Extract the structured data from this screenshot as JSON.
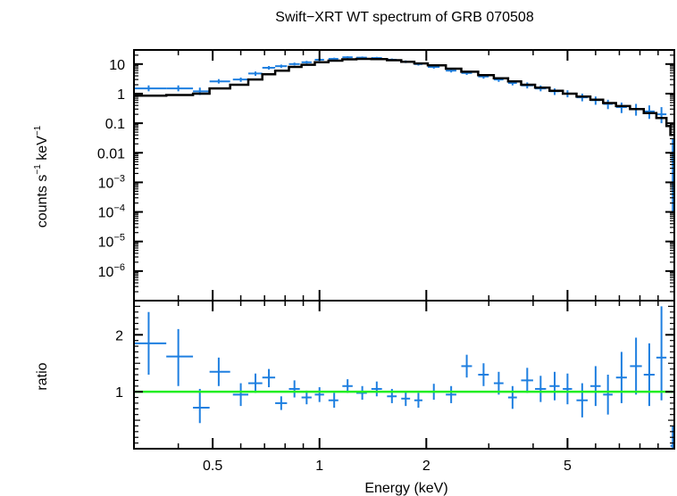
{
  "chart_data": {
    "type": "scatter",
    "title": "Swift−XRT WT spectrum of GRB 070508",
    "xlabel": "Energy (keV)",
    "x_scale": "log",
    "xlim": [
      0.3,
      10
    ],
    "x_ticks": [
      {
        "value": 0.5,
        "label": "0.5"
      },
      {
        "value": 1,
        "label": "1"
      },
      {
        "value": 2,
        "label": "2"
      },
      {
        "value": 5,
        "label": "5"
      }
    ],
    "colors": {
      "data": "#1e7fe0",
      "model": "#000000",
      "unity": "#22ee22",
      "frame": "#000000"
    },
    "panels": [
      {
        "id": "spectrum",
        "ylabel_main": "counts s",
        "ylabel_exp1": "−1",
        "ylabel_mid": " keV",
        "ylabel_exp2": "−1",
        "y_scale": "log",
        "ylim": [
          1e-07,
          30
        ],
        "y_ticks": [
          {
            "value": 10,
            "label": "10"
          },
          {
            "value": 1,
            "label": "1"
          },
          {
            "value": 0.1,
            "label": "0.1"
          },
          {
            "value": 0.01,
            "label": "0.01"
          },
          {
            "value": 0.001,
            "base": "10",
            "exp": "−3"
          },
          {
            "value": 0.0001,
            "base": "10",
            "exp": "−4"
          },
          {
            "value": 1e-05,
            "base": "10",
            "exp": "−5"
          },
          {
            "value": 1e-06,
            "base": "10",
            "exp": "−6"
          }
        ],
        "series": [
          {
            "kind": "data",
            "points": [
              {
                "x": 0.33,
                "y": 1.5,
                "xlo": 0.3,
                "xhi": 0.37,
                "ylo": 1.2,
                "yhi": 1.9
              },
              {
                "x": 0.4,
                "y": 1.5,
                "xlo": 0.37,
                "xhi": 0.44,
                "ylo": 1.2,
                "yhi": 1.9
              },
              {
                "x": 0.46,
                "y": 1.2,
                "xlo": 0.44,
                "xhi": 0.49,
                "ylo": 0.9,
                "yhi": 1.6
              },
              {
                "x": 0.52,
                "y": 2.6,
                "xlo": 0.49,
                "xhi": 0.56,
                "ylo": 2.2,
                "yhi": 3.1
              },
              {
                "x": 0.6,
                "y": 3.0,
                "xlo": 0.57,
                "xhi": 0.63,
                "ylo": 2.5,
                "yhi": 3.5
              },
              {
                "x": 0.66,
                "y": 4.8,
                "xlo": 0.63,
                "xhi": 0.69,
                "ylo": 4.0,
                "yhi": 5.6
              },
              {
                "x": 0.72,
                "y": 7.5,
                "xlo": 0.69,
                "xhi": 0.75,
                "ylo": 6.5,
                "yhi": 8.6
              },
              {
                "x": 0.78,
                "y": 8.5,
                "xlo": 0.75,
                "xhi": 0.81,
                "ylo": 7.5,
                "yhi": 9.6
              },
              {
                "x": 0.85,
                "y": 10.0,
                "xlo": 0.82,
                "xhi": 0.88,
                "ylo": 9.0,
                "yhi": 11.2
              },
              {
                "x": 0.92,
                "y": 11.5,
                "xlo": 0.89,
                "xhi": 0.95,
                "ylo": 10.4,
                "yhi": 12.8
              },
              {
                "x": 1.0,
                "y": 14.0,
                "xlo": 0.97,
                "xhi": 1.03,
                "ylo": 12.7,
                "yhi": 15.4
              },
              {
                "x": 1.1,
                "y": 15.0,
                "xlo": 1.06,
                "xhi": 1.13,
                "ylo": 13.8,
                "yhi": 16.4
              },
              {
                "x": 1.2,
                "y": 17.0,
                "xlo": 1.16,
                "xhi": 1.24,
                "ylo": 15.6,
                "yhi": 18.5
              },
              {
                "x": 1.32,
                "y": 16.5,
                "xlo": 1.27,
                "xhi": 1.36,
                "ylo": 15.1,
                "yhi": 18.0
              },
              {
                "x": 1.45,
                "y": 16.0,
                "xlo": 1.4,
                "xhi": 1.5,
                "ylo": 14.6,
                "yhi": 17.5
              },
              {
                "x": 1.6,
                "y": 14.0,
                "xlo": 1.55,
                "xhi": 1.65,
                "ylo": 12.7,
                "yhi": 15.4
              },
              {
                "x": 1.75,
                "y": 12.0,
                "xlo": 1.7,
                "xhi": 1.8,
                "ylo": 10.8,
                "yhi": 13.3
              },
              {
                "x": 1.9,
                "y": 10.0,
                "xlo": 1.85,
                "xhi": 1.95,
                "ylo": 8.9,
                "yhi": 11.2
              },
              {
                "x": 2.1,
                "y": 8.0,
                "xlo": 2.02,
                "xhi": 2.18,
                "ylo": 7.0,
                "yhi": 9.1
              },
              {
                "x": 2.35,
                "y": 6.0,
                "xlo": 2.27,
                "xhi": 2.43,
                "ylo": 5.2,
                "yhi": 6.9
              },
              {
                "x": 2.6,
                "y": 5.0,
                "xlo": 2.51,
                "xhi": 2.69,
                "ylo": 4.3,
                "yhi": 5.8
              },
              {
                "x": 2.9,
                "y": 3.8,
                "xlo": 2.8,
                "xhi": 3.0,
                "ylo": 3.2,
                "yhi": 4.5
              },
              {
                "x": 3.2,
                "y": 3.0,
                "xlo": 3.1,
                "xhi": 3.3,
                "ylo": 2.5,
                "yhi": 3.6
              },
              {
                "x": 3.5,
                "y": 2.3,
                "xlo": 3.4,
                "xhi": 3.6,
                "ylo": 1.9,
                "yhi": 2.8
              },
              {
                "x": 3.85,
                "y": 1.9,
                "xlo": 3.7,
                "xhi": 4.0,
                "ylo": 1.5,
                "yhi": 2.4
              },
              {
                "x": 4.2,
                "y": 1.5,
                "xlo": 4.05,
                "xhi": 4.35,
                "ylo": 1.2,
                "yhi": 1.9
              },
              {
                "x": 4.6,
                "y": 1.2,
                "xlo": 4.45,
                "xhi": 4.75,
                "ylo": 0.9,
                "yhi": 1.5
              },
              {
                "x": 5.0,
                "y": 1.0,
                "xlo": 4.85,
                "xhi": 5.15,
                "ylo": 0.75,
                "yhi": 1.3
              },
              {
                "x": 5.5,
                "y": 0.75,
                "xlo": 5.3,
                "xhi": 5.7,
                "ylo": 0.55,
                "yhi": 1.0
              },
              {
                "x": 6.0,
                "y": 0.6,
                "xlo": 5.8,
                "xhi": 6.2,
                "ylo": 0.42,
                "yhi": 0.8
              },
              {
                "x": 6.5,
                "y": 0.45,
                "xlo": 6.3,
                "xhi": 6.7,
                "ylo": 0.3,
                "yhi": 0.62
              },
              {
                "x": 7.1,
                "y": 0.35,
                "xlo": 6.85,
                "xhi": 7.35,
                "ylo": 0.22,
                "yhi": 0.5
              },
              {
                "x": 7.8,
                "y": 0.3,
                "xlo": 7.5,
                "xhi": 8.1,
                "ylo": 0.18,
                "yhi": 0.45
              },
              {
                "x": 8.5,
                "y": 0.25,
                "xlo": 8.2,
                "xhi": 8.8,
                "ylo": 0.14,
                "yhi": 0.4
              },
              {
                "x": 9.2,
                "y": 0.2,
                "xlo": 8.9,
                "xhi": 9.5,
                "ylo": 0.1,
                "yhi": 0.35
              },
              {
                "x": 9.9,
                "y": 0.006,
                "xlo": 9.75,
                "xhi": 10.0,
                "ylo": 0.0001,
                "yhi": 0.03
              }
            ]
          },
          {
            "kind": "model",
            "steps": [
              [
                0.3,
                0.85
              ],
              [
                0.37,
                0.9
              ],
              [
                0.44,
                1.0
              ],
              [
                0.49,
                1.5
              ],
              [
                0.56,
                2.0
              ],
              [
                0.63,
                3.0
              ],
              [
                0.69,
                4.5
              ],
              [
                0.75,
                6.0
              ],
              [
                0.82,
                8.0
              ],
              [
                0.89,
                9.5
              ],
              [
                0.97,
                11.5
              ],
              [
                1.06,
                13.0
              ],
              [
                1.16,
                14.5
              ],
              [
                1.27,
                15.0
              ],
              [
                1.4,
                14.8
              ],
              [
                1.55,
                13.5
              ],
              [
                1.7,
                12.0
              ],
              [
                1.85,
                10.5
              ],
              [
                2.02,
                9.0
              ],
              [
                2.27,
                7.0
              ],
              [
                2.51,
                5.5
              ],
              [
                2.8,
                4.2
              ],
              [
                3.1,
                3.3
              ],
              [
                3.4,
                2.6
              ],
              [
                3.7,
                2.0
              ],
              [
                4.05,
                1.6
              ],
              [
                4.45,
                1.25
              ],
              [
                4.85,
                1.0
              ],
              [
                5.3,
                0.8
              ],
              [
                5.8,
                0.62
              ],
              [
                6.3,
                0.48
              ],
              [
                6.85,
                0.38
              ],
              [
                7.5,
                0.3
              ],
              [
                8.2,
                0.22
              ],
              [
                8.9,
                0.15
              ],
              [
                9.5,
                0.08
              ],
              [
                9.75,
                0.04
              ],
              [
                10.0,
                0.04
              ]
            ]
          }
        ]
      },
      {
        "id": "ratio",
        "ylabel": "ratio",
        "y_scale": "linear",
        "ylim": [
          0,
          2.6
        ],
        "y_ticks": [
          {
            "value": 1,
            "label": "1"
          },
          {
            "value": 2,
            "label": "2"
          }
        ],
        "reference_line": 1,
        "series": [
          {
            "kind": "data",
            "points": [
              {
                "x": 0.33,
                "y": 1.85,
                "xlo": 0.3,
                "xhi": 0.37,
                "ylo": 1.3,
                "yhi": 2.4
              },
              {
                "x": 0.4,
                "y": 1.62,
                "xlo": 0.37,
                "xhi": 0.44,
                "ylo": 1.1,
                "yhi": 2.1
              },
              {
                "x": 0.46,
                "y": 0.72,
                "xlo": 0.44,
                "xhi": 0.49,
                "ylo": 0.45,
                "yhi": 1.05
              },
              {
                "x": 0.52,
                "y": 1.35,
                "xlo": 0.49,
                "xhi": 0.56,
                "ylo": 1.1,
                "yhi": 1.6
              },
              {
                "x": 0.6,
                "y": 0.95,
                "xlo": 0.57,
                "xhi": 0.63,
                "ylo": 0.75,
                "yhi": 1.15
              },
              {
                "x": 0.66,
                "y": 1.15,
                "xlo": 0.63,
                "xhi": 0.69,
                "ylo": 0.98,
                "yhi": 1.32
              },
              {
                "x": 0.72,
                "y": 1.25,
                "xlo": 0.69,
                "xhi": 0.75,
                "ylo": 1.08,
                "yhi": 1.4
              },
              {
                "x": 0.78,
                "y": 0.8,
                "xlo": 0.75,
                "xhi": 0.81,
                "ylo": 0.68,
                "yhi": 0.92
              },
              {
                "x": 0.85,
                "y": 1.05,
                "xlo": 0.82,
                "xhi": 0.88,
                "ylo": 0.9,
                "yhi": 1.2
              },
              {
                "x": 0.92,
                "y": 0.9,
                "xlo": 0.89,
                "xhi": 0.95,
                "ylo": 0.78,
                "yhi": 1.02
              },
              {
                "x": 1.0,
                "y": 0.95,
                "xlo": 0.97,
                "xhi": 1.03,
                "ylo": 0.82,
                "yhi": 1.08
              },
              {
                "x": 1.1,
                "y": 0.85,
                "xlo": 1.06,
                "xhi": 1.13,
                "ylo": 0.72,
                "yhi": 0.98
              },
              {
                "x": 1.2,
                "y": 1.1,
                "xlo": 1.16,
                "xhi": 1.24,
                "ylo": 0.98,
                "yhi": 1.22
              },
              {
                "x": 1.32,
                "y": 0.98,
                "xlo": 1.27,
                "xhi": 1.36,
                "ylo": 0.86,
                "yhi": 1.1
              },
              {
                "x": 1.45,
                "y": 1.05,
                "xlo": 1.4,
                "xhi": 1.5,
                "ylo": 0.92,
                "yhi": 1.18
              },
              {
                "x": 1.6,
                "y": 0.92,
                "xlo": 1.55,
                "xhi": 1.65,
                "ylo": 0.8,
                "yhi": 1.05
              },
              {
                "x": 1.75,
                "y": 0.88,
                "xlo": 1.7,
                "xhi": 1.8,
                "ylo": 0.75,
                "yhi": 1.0
              },
              {
                "x": 1.9,
                "y": 0.85,
                "xlo": 1.85,
                "xhi": 1.95,
                "ylo": 0.72,
                "yhi": 0.98
              },
              {
                "x": 2.1,
                "y": 1.0,
                "xlo": 2.02,
                "xhi": 2.18,
                "ylo": 0.86,
                "yhi": 1.14
              },
              {
                "x": 2.35,
                "y": 0.95,
                "xlo": 2.27,
                "xhi": 2.43,
                "ylo": 0.8,
                "yhi": 1.1
              },
              {
                "x": 2.6,
                "y": 1.45,
                "xlo": 2.51,
                "xhi": 2.69,
                "ylo": 1.25,
                "yhi": 1.65
              },
              {
                "x": 2.9,
                "y": 1.3,
                "xlo": 2.8,
                "xhi": 3.0,
                "ylo": 1.1,
                "yhi": 1.5
              },
              {
                "x": 3.2,
                "y": 1.15,
                "xlo": 3.1,
                "xhi": 3.3,
                "ylo": 0.95,
                "yhi": 1.35
              },
              {
                "x": 3.5,
                "y": 0.9,
                "xlo": 3.4,
                "xhi": 3.6,
                "ylo": 0.7,
                "yhi": 1.1
              },
              {
                "x": 3.85,
                "y": 1.2,
                "xlo": 3.7,
                "xhi": 4.0,
                "ylo": 0.98,
                "yhi": 1.42
              },
              {
                "x": 4.2,
                "y": 1.05,
                "xlo": 4.05,
                "xhi": 4.35,
                "ylo": 0.82,
                "yhi": 1.28
              },
              {
                "x": 4.6,
                "y": 1.1,
                "xlo": 4.45,
                "xhi": 4.75,
                "ylo": 0.85,
                "yhi": 1.35
              },
              {
                "x": 5.0,
                "y": 1.05,
                "xlo": 4.85,
                "xhi": 5.15,
                "ylo": 0.78,
                "yhi": 1.32
              },
              {
                "x": 5.5,
                "y": 0.85,
                "xlo": 5.3,
                "xhi": 5.7,
                "ylo": 0.55,
                "yhi": 1.15
              },
              {
                "x": 6.0,
                "y": 1.1,
                "xlo": 5.8,
                "xhi": 6.2,
                "ylo": 0.75,
                "yhi": 1.45
              },
              {
                "x": 6.5,
                "y": 0.95,
                "xlo": 6.3,
                "xhi": 6.7,
                "ylo": 0.6,
                "yhi": 1.3
              },
              {
                "x": 7.1,
                "y": 1.25,
                "xlo": 6.85,
                "xhi": 7.35,
                "ylo": 0.8,
                "yhi": 1.7
              },
              {
                "x": 7.8,
                "y": 1.45,
                "xlo": 7.5,
                "xhi": 8.1,
                "ylo": 0.95,
                "yhi": 1.95
              },
              {
                "x": 8.5,
                "y": 1.3,
                "xlo": 8.2,
                "xhi": 8.8,
                "ylo": 0.75,
                "yhi": 1.85
              },
              {
                "x": 9.2,
                "y": 1.6,
                "xlo": 8.9,
                "xhi": 9.5,
                "ylo": 0.85,
                "yhi": 2.5
              },
              {
                "x": 9.9,
                "y": 0.05,
                "xlo": 9.75,
                "xhi": 10.0,
                "ylo": 0.0,
                "yhi": 0.4
              }
            ]
          }
        ]
      }
    ]
  }
}
